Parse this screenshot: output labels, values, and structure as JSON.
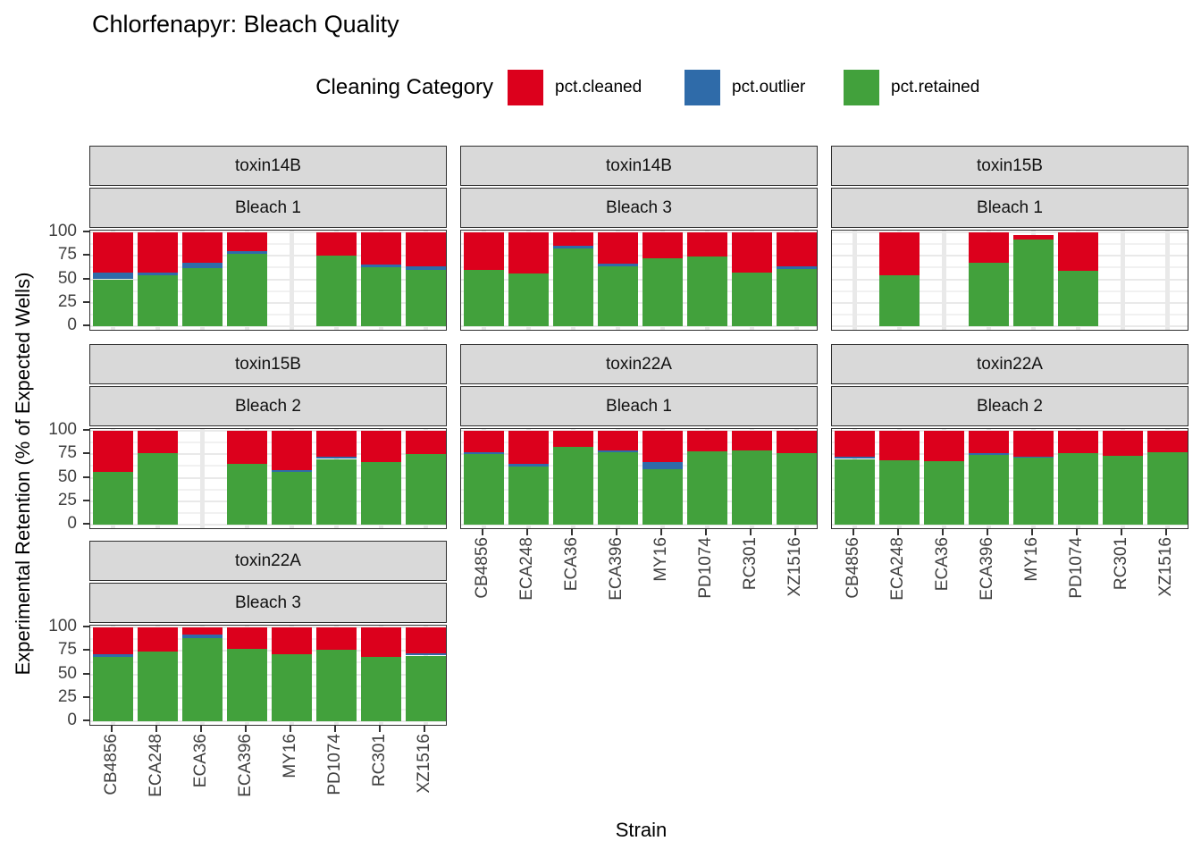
{
  "title": "Chlorfenapyr: Bleach Quality",
  "legend": {
    "title": "Cleaning Category",
    "items": [
      {
        "label": "pct.cleaned",
        "color": "#DC001C"
      },
      {
        "label": "pct.outlier",
        "color": "#2F6BA9"
      },
      {
        "label": "pct.retained",
        "color": "#42A13C"
      }
    ]
  },
  "axes": {
    "y_title": "Experimental Retention (% of Expected Wells)",
    "x_title": "Strain",
    "y_ticks": [
      0,
      25,
      50,
      75,
      100
    ],
    "y_minor_ticks": [
      12.5,
      37.5,
      62.5,
      87.5
    ]
  },
  "colors": {
    "cleaned": "#DC001C",
    "outlier": "#2F6BA9",
    "retained": "#42A13C",
    "strip_bg": "#D9D9D9",
    "panel_border": "#2F2F2F",
    "grid": "#E9E9E9",
    "grid_minor": "#F1F1F1",
    "axis_text": "#404040"
  },
  "chart_data": {
    "type": "bar",
    "stacked": true,
    "ylim": [
      0,
      100
    ],
    "grid": true,
    "legend_position": "top",
    "categories": [
      "CB4856",
      "ECA248",
      "ECA36",
      "ECA396",
      "MY16",
      "PD1074",
      "RC301",
      "XZ1516"
    ],
    "stack_order": [
      "pct.retained",
      "pct.outlier",
      "pct.cleaned"
    ],
    "series_colors": {
      "pct.retained": "#42A13C",
      "pct.outlier": "#2F6BA9",
      "pct.cleaned": "#DC001C"
    },
    "facets": [
      {
        "toxin": "toxin14B",
        "bleach": "Bleach 1",
        "row": 0,
        "col": 0,
        "show_x_axis": false,
        "values": {
          "pct.retained": [
            50,
            54,
            62,
            77,
            null,
            75,
            63,
            60
          ],
          "pct.outlier": [
            7,
            3,
            6,
            3,
            null,
            0,
            3,
            4
          ],
          "pct.cleaned": [
            43,
            43,
            32,
            20,
            null,
            25,
            34,
            36
          ]
        }
      },
      {
        "toxin": "toxin14B",
        "bleach": "Bleach 3",
        "row": 0,
        "col": 1,
        "show_x_axis": false,
        "values": {
          "pct.retained": [
            60,
            56,
            83,
            64,
            72,
            74,
            57,
            61
          ],
          "pct.outlier": [
            0,
            0,
            3,
            3,
            0,
            0,
            0,
            3
          ],
          "pct.cleaned": [
            40,
            44,
            14,
            33,
            28,
            26,
            43,
            36
          ]
        }
      },
      {
        "toxin": "toxin15B",
        "bleach": "Bleach 1",
        "row": 0,
        "col": 2,
        "show_x_axis": false,
        "values": {
          "pct.retained": [
            null,
            54,
            null,
            68,
            92,
            59,
            null,
            null
          ],
          "pct.outlier": [
            null,
            0,
            null,
            0,
            0,
            0,
            null,
            null
          ],
          "pct.cleaned": [
            null,
            46,
            null,
            32,
            5,
            41,
            null,
            null
          ]
        }
      },
      {
        "toxin": "toxin15B",
        "bleach": "Bleach 2",
        "row": 1,
        "col": 0,
        "show_x_axis": false,
        "values": {
          "pct.retained": [
            56,
            76,
            null,
            65,
            56,
            70,
            67,
            75
          ],
          "pct.outlier": [
            0,
            0,
            null,
            0,
            2,
            2,
            0,
            0
          ],
          "pct.cleaned": [
            44,
            24,
            null,
            35,
            42,
            28,
            33,
            25
          ]
        }
      },
      {
        "toxin": "toxin22A",
        "bleach": "Bleach 1",
        "row": 1,
        "col": 1,
        "show_x_axis": true,
        "values": {
          "pct.retained": [
            75,
            62,
            83,
            77,
            59,
            78,
            79,
            76
          ],
          "pct.outlier": [
            2,
            3,
            0,
            2,
            8,
            0,
            0,
            0
          ],
          "pct.cleaned": [
            23,
            35,
            17,
            21,
            33,
            22,
            21,
            24
          ]
        }
      },
      {
        "toxin": "toxin22A",
        "bleach": "Bleach 2",
        "row": 1,
        "col": 2,
        "show_x_axis": true,
        "values": {
          "pct.retained": [
            70,
            69,
            68,
            74,
            71,
            76,
            73,
            77
          ],
          "pct.outlier": [
            2,
            0,
            0,
            2,
            1,
            0,
            0,
            0
          ],
          "pct.cleaned": [
            28,
            31,
            32,
            24,
            28,
            24,
            27,
            23
          ]
        }
      },
      {
        "toxin": "toxin22A",
        "bleach": "Bleach 3",
        "row": 2,
        "col": 0,
        "show_x_axis": true,
        "values": {
          "pct.retained": [
            69,
            74,
            89,
            77,
            71,
            76,
            69,
            70
          ],
          "pct.outlier": [
            2,
            0,
            3,
            0,
            0,
            0,
            0,
            2
          ],
          "pct.cleaned": [
            29,
            26,
            8,
            23,
            29,
            24,
            31,
            28
          ]
        }
      }
    ]
  }
}
